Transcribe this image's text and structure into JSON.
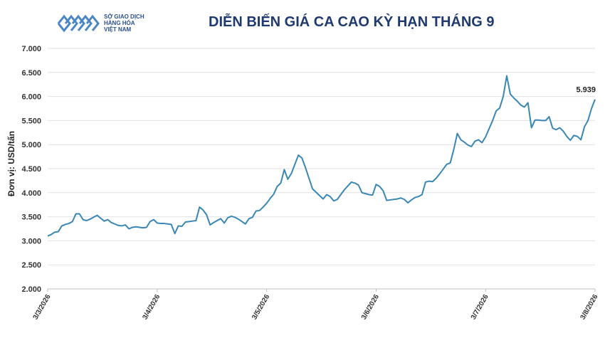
{
  "header": {
    "logo_lines": [
      "SỞ GIAO DỊCH",
      "HÀNG HÓA",
      "VIỆT NAM"
    ],
    "title": "DIỄN BIẾN GIÁ CA CAO KỲ HẠN THÁNG 9"
  },
  "chart_data": {
    "type": "line",
    "title": "DIỄN BIẾN GIÁ CA CAO KỲ HẠN THÁNG 9",
    "ylabel": "Đơn vị: USD/tấn",
    "xlabel": "",
    "ylim": [
      2000,
      7000
    ],
    "yticks": [
      2000,
      2500,
      3000,
      3500,
      4000,
      4500,
      5000,
      5500,
      6000,
      6500,
      7000
    ],
    "ytick_labels": [
      "2.000",
      "2.500",
      "3.000",
      "3.500",
      "4.000",
      "4.500",
      "5.000",
      "5.500",
      "6.000",
      "6.500",
      "7.000"
    ],
    "xticks": [
      "3/3/2026",
      "3/4/2026",
      "3/5/2026",
      "3/6/2026",
      "3/7/2026",
      "3/8/2026"
    ],
    "grid": "horizontal",
    "line_color": "#3a87b5",
    "last_value_label": "5.939",
    "series": [
      {
        "values": [
          3100,
          3130,
          3180,
          3190,
          3310,
          3340,
          3360,
          3400,
          3560,
          3560,
          3440,
          3420,
          3450,
          3490,
          3530,
          3470,
          3410,
          3440,
          3380,
          3350,
          3320,
          3310,
          3330,
          3250,
          3280,
          3290,
          3280,
          3270,
          3280,
          3400,
          3440,
          3370,
          3360,
          3360,
          3350,
          3340,
          3150,
          3310,
          3300,
          3390,
          3400,
          3410,
          3420,
          3700,
          3640,
          3540,
          3330,
          3380,
          3420,
          3460,
          3370,
          3480,
          3510,
          3490,
          3450,
          3400,
          3350,
          3460,
          3490,
          3620,
          3630,
          3700,
          3780,
          3880,
          3970,
          4130,
          4200,
          4480,
          4280,
          4400,
          4590,
          4780,
          4720,
          4520,
          4300,
          4080,
          4010,
          3940,
          3870,
          3960,
          3920,
          3830,
          3860,
          3960,
          4060,
          4140,
          4220,
          4200,
          4160,
          4000,
          3980,
          3960,
          3950,
          4170,
          4130,
          4040,
          3840,
          3850,
          3860,
          3870,
          3890,
          3860,
          3790,
          3850,
          3900,
          3920,
          3960,
          4220,
          4240,
          4230,
          4300,
          4390,
          4490,
          4590,
          4620,
          4900,
          5230,
          5100,
          5050,
          4990,
          4960,
          5070,
          5100,
          5040,
          5160,
          5330,
          5500,
          5700,
          5760,
          6000,
          6430,
          6050,
          5970,
          5900,
          5820,
          5780,
          5870,
          5350,
          5510,
          5510,
          5500,
          5500,
          5580,
          5340,
          5310,
          5350,
          5280,
          5170,
          5090,
          5190,
          5170,
          5100,
          5370,
          5500,
          5750,
          5939
        ]
      }
    ]
  }
}
